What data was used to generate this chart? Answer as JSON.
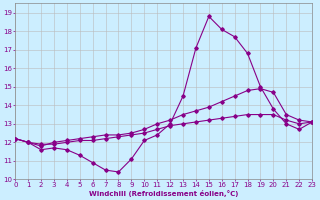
{
  "xlabel": "Windchill (Refroidissement éolien,°C)",
  "xlim": [
    0,
    23
  ],
  "ylim": [
    10,
    19.5
  ],
  "yticks": [
    10,
    11,
    12,
    13,
    14,
    15,
    16,
    17,
    18,
    19
  ],
  "xticks": [
    0,
    1,
    2,
    3,
    4,
    5,
    6,
    7,
    8,
    9,
    10,
    11,
    12,
    13,
    14,
    15,
    16,
    17,
    18,
    19,
    20,
    21,
    22,
    23
  ],
  "background_color": "#cceeff",
  "grid_color": "#bbbbbb",
  "line_color": "#880088",
  "series": [
    {
      "x": [
        0,
        1,
        2,
        3,
        4,
        5,
        6,
        7,
        8,
        9,
        10,
        11,
        12,
        13,
        14,
        15,
        16,
        17,
        18,
        19,
        20,
        21,
        22,
        23
      ],
      "y": [
        12.2,
        12.0,
        11.6,
        11.7,
        11.6,
        11.3,
        10.9,
        10.5,
        10.4,
        11.1,
        12.1,
        12.4,
        13.0,
        14.5,
        17.1,
        18.8,
        18.1,
        17.7,
        16.8,
        15.0,
        13.8,
        13.0,
        12.7,
        13.1
      ]
    },
    {
      "x": [
        0,
        1,
        2,
        3,
        4,
        5,
        6,
        7,
        8,
        9,
        10,
        11,
        12,
        13,
        14,
        15,
        16,
        17,
        18,
        19,
        20,
        21,
        22,
        23
      ],
      "y": [
        12.2,
        12.0,
        11.8,
        12.0,
        12.1,
        12.2,
        12.3,
        12.4,
        12.4,
        12.5,
        12.7,
        13.0,
        13.2,
        13.5,
        13.7,
        13.9,
        14.2,
        14.5,
        14.8,
        14.9,
        14.7,
        13.5,
        13.2,
        13.1
      ]
    },
    {
      "x": [
        0,
        1,
        2,
        3,
        4,
        5,
        6,
        7,
        8,
        9,
        10,
        11,
        12,
        13,
        14,
        15,
        16,
        17,
        18,
        19,
        20,
        21,
        22,
        23
      ],
      "y": [
        12.2,
        12.0,
        11.9,
        11.9,
        12.0,
        12.1,
        12.1,
        12.2,
        12.3,
        12.4,
        12.5,
        12.7,
        12.9,
        13.0,
        13.1,
        13.2,
        13.3,
        13.4,
        13.5,
        13.5,
        13.5,
        13.2,
        13.0,
        13.1
      ]
    }
  ]
}
